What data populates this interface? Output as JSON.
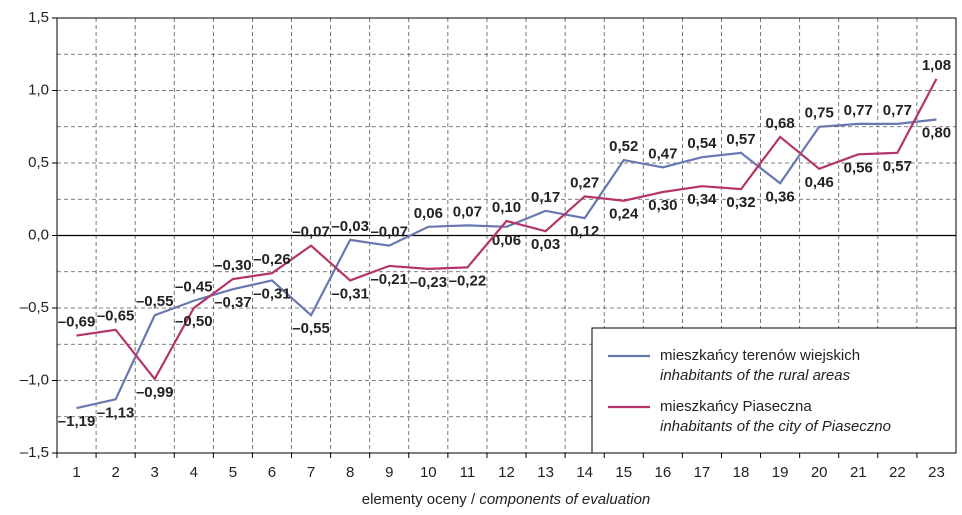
{
  "chart_data": {
    "type": "line",
    "categories": [
      "1",
      "2",
      "3",
      "4",
      "5",
      "6",
      "7",
      "8",
      "9",
      "10",
      "11",
      "12",
      "13",
      "14",
      "15",
      "16",
      "17",
      "18",
      "19",
      "20",
      "21",
      "22",
      "23"
    ],
    "series": [
      {
        "name": "mieszkańcy terenów wiejskich",
        "name_en": "inhabitants of the rural areas",
        "color": "#6878b0",
        "values": [
          -1.19,
          -1.13,
          -0.55,
          -0.45,
          -0.37,
          -0.31,
          -0.55,
          -0.03,
          -0.07,
          0.06,
          0.07,
          0.06,
          0.17,
          0.12,
          0.52,
          0.47,
          0.54,
          0.57,
          0.36,
          0.75,
          0.77,
          0.77,
          0.8
        ],
        "value_labels": [
          "–1,19",
          "–1,13",
          "–0,55",
          "–0,45",
          "–0,37",
          "–0,31",
          "–0,55",
          "–0,03",
          "–0,07",
          "0,06",
          "0,07",
          "0,06",
          "0,17",
          "0,12",
          "0,52",
          "0,47",
          "0,54",
          "0,57",
          "0,36",
          "0,75",
          "0,77",
          "0,77",
          "0,80"
        ]
      },
      {
        "name": "mieszkańcy Piaseczna",
        "name_en": "inhabitants of the city of Piaseczno",
        "color": "#b4346a",
        "values": [
          -0.69,
          -0.65,
          -0.99,
          -0.5,
          -0.3,
          -0.26,
          -0.07,
          -0.31,
          -0.21,
          -0.23,
          -0.22,
          0.1,
          0.03,
          0.27,
          0.24,
          0.3,
          0.34,
          0.32,
          0.68,
          0.46,
          0.56,
          0.57,
          1.08
        ],
        "value_labels": [
          "–0,69",
          "–0,65",
          "–0,99",
          "–0,50",
          "–0,30",
          "–0,26",
          "–0,07",
          "–0,31",
          "–0,21",
          "–0,23",
          "–0,22",
          "0,10",
          "0,03",
          "0,27",
          "0,24",
          "0,30",
          "0,34",
          "0,32",
          "0,68",
          "0,46",
          "0,56",
          "0,57",
          "1,08"
        ]
      }
    ],
    "x_label": {
      "pl": "elementy oceny /",
      "en": "components of evaluation"
    },
    "ylim": [
      -1.5,
      1.5
    ],
    "yticks": [
      {
        "value": -1.5,
        "label": "–1,5"
      },
      {
        "value": -1.0,
        "label": "–1,0"
      },
      {
        "value": -0.5,
        "label": "–0,5"
      },
      {
        "value": 0,
        "label": "0,0"
      },
      {
        "value": 0.5,
        "label": "0,5"
      },
      {
        "value": 1.0,
        "label": "1,0"
      },
      {
        "value": 1.5,
        "label": "1,5"
      }
    ],
    "minor_grid": [
      -1.25,
      -0.75,
      -0.25,
      0.25,
      0.75,
      1.25
    ],
    "grid": true,
    "legend": "lower right"
  }
}
